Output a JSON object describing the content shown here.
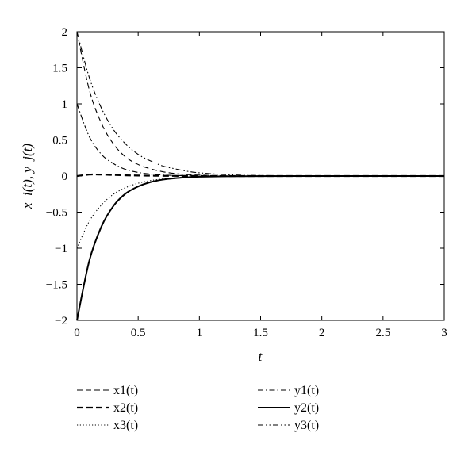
{
  "chart_data": {
    "type": "line",
    "xlabel": "t",
    "ylabel": "x_i(t), y_j(t)",
    "xlim": [
      0,
      3
    ],
    "ylim": [
      -2,
      2
    ],
    "xticks": [
      "0",
      "0.5",
      "1",
      "1.5",
      "2",
      "2.5",
      "3"
    ],
    "yticks": [
      "2",
      "1.5",
      "1",
      "0.5",
      "0",
      "−0.5",
      "−1",
      "−1.5",
      "−2"
    ],
    "grid": false,
    "legend_position": "bottom",
    "x": [
      0,
      0.1,
      0.2,
      0.3,
      0.4,
      0.5,
      0.6,
      0.7,
      0.8,
      0.9,
      1.0,
      1.2,
      1.5,
      2.0,
      2.5,
      3.0
    ],
    "series": [
      {
        "name": "x1(t)",
        "dash": "dashed",
        "values": [
          2.0,
          1.2,
          0.73,
          0.44,
          0.26,
          0.16,
          0.1,
          0.06,
          0.035,
          0.02,
          0.013,
          0.005,
          0.001,
          0,
          0,
          0
        ]
      },
      {
        "name": "x2(t)",
        "dash": "bold-dashed",
        "values": [
          0.0,
          0.02,
          0.02,
          0.015,
          0.01,
          0.007,
          0.005,
          0.003,
          0.002,
          0.001,
          0.001,
          0,
          0,
          0,
          0,
          0
        ]
      },
      {
        "name": "x3(t)",
        "dash": "dotted",
        "values": [
          -1.0,
          -0.63,
          -0.4,
          -0.25,
          -0.16,
          -0.1,
          -0.063,
          -0.04,
          -0.025,
          -0.016,
          -0.01,
          -0.004,
          -0.001,
          0,
          0,
          0
        ]
      },
      {
        "name": "y1(t)",
        "dash": "dash-dot",
        "values": [
          1.0,
          0.55,
          0.3,
          0.17,
          0.09,
          0.05,
          0.027,
          0.015,
          0.008,
          0.004,
          0.002,
          0.001,
          0,
          0,
          0,
          0
        ]
      },
      {
        "name": "y2(t)",
        "dash": "solid",
        "values": [
          -2.0,
          -1.18,
          -0.7,
          -0.41,
          -0.24,
          -0.145,
          -0.085,
          -0.05,
          -0.03,
          -0.018,
          -0.01,
          -0.004,
          -0.001,
          0,
          0,
          0
        ]
      },
      {
        "name": "y3(t)",
        "dash": "dash-dot-dot",
        "values": [
          2.0,
          1.37,
          0.94,
          0.64,
          0.44,
          0.3,
          0.21,
          0.14,
          0.1,
          0.066,
          0.045,
          0.021,
          0.007,
          0.001,
          0,
          0
        ]
      }
    ]
  }
}
